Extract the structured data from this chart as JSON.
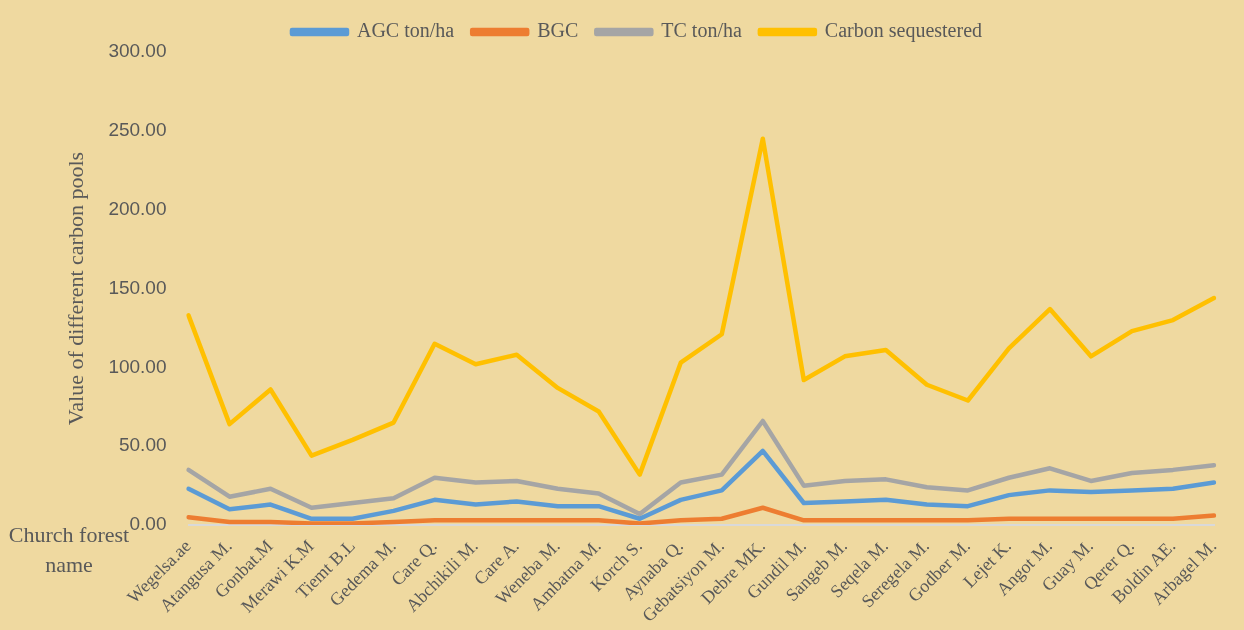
{
  "chart_data": {
    "type": "line",
    "ylabel": "Value of different carbon pools",
    "xlabel": "Church forest name",
    "categories": [
      "Wegelsa.ae",
      "Atangusa M.",
      "Gonbat.M",
      "Merawi K.M",
      "Tiemt B.L",
      "Gedema M.",
      "Care Q.",
      "Abchikili M.",
      "Care A.",
      "Weneba M.",
      "Ambatna M.",
      "Korch S.",
      "Aynaba Q.",
      "Gebatsiyon M.",
      "Debre MK.",
      "Gundil M.",
      "Sangeb M.",
      "Seqela M.",
      "Seregela M.",
      "Godber M.",
      "Lejet K.",
      "Angot M.",
      "Guay M.",
      "Qerer Q.",
      "Boldin AE.",
      "Arbagel M."
    ],
    "series": [
      {
        "name": "AGC ton/ha",
        "color": "#5b9bd5",
        "values": [
          23,
          10,
          13,
          4,
          4,
          9,
          16,
          13,
          15,
          12,
          12,
          4,
          16,
          22,
          47,
          14,
          15,
          16,
          13,
          12,
          19,
          22,
          21,
          22,
          23,
          27
        ]
      },
      {
        "name": "BGC",
        "color": "#ed7d31",
        "values": [
          5,
          2,
          2,
          1,
          1,
          2,
          3,
          3,
          3,
          3,
          3,
          1,
          3,
          4,
          11,
          3,
          3,
          3,
          3,
          3,
          4,
          4,
          4,
          4,
          4,
          6
        ]
      },
      {
        "name": "TC ton/ha",
        "color": "#a5a5a5",
        "values": [
          35,
          18,
          23,
          11,
          14,
          17,
          30,
          27,
          28,
          23,
          20,
          7,
          27,
          32,
          66,
          25,
          28,
          29,
          24,
          22,
          30,
          36,
          28,
          33,
          35,
          38
        ]
      },
      {
        "name": "Carbon sequestered",
        "color": "#ffc000",
        "values": [
          133,
          64,
          86,
          44,
          54,
          65,
          115,
          102,
          108,
          87,
          72,
          32,
          103,
          121,
          245,
          92,
          107,
          111,
          89,
          79,
          112,
          137,
          107,
          123,
          130,
          144
        ]
      }
    ],
    "ylim": [
      0,
      300
    ],
    "yticks": [
      {
        "value": 0,
        "label": "0.00"
      },
      {
        "value": 50,
        "label": "50.00"
      },
      {
        "value": 100,
        "label": "100.00"
      },
      {
        "value": 150,
        "label": "150.00"
      },
      {
        "value": 200,
        "label": "200.00"
      },
      {
        "value": 250,
        "label": "250.00"
      },
      {
        "value": 300,
        "label": "300.00"
      }
    ],
    "grid": false,
    "legend": "top",
    "marker": "none",
    "line_style": "solid"
  }
}
